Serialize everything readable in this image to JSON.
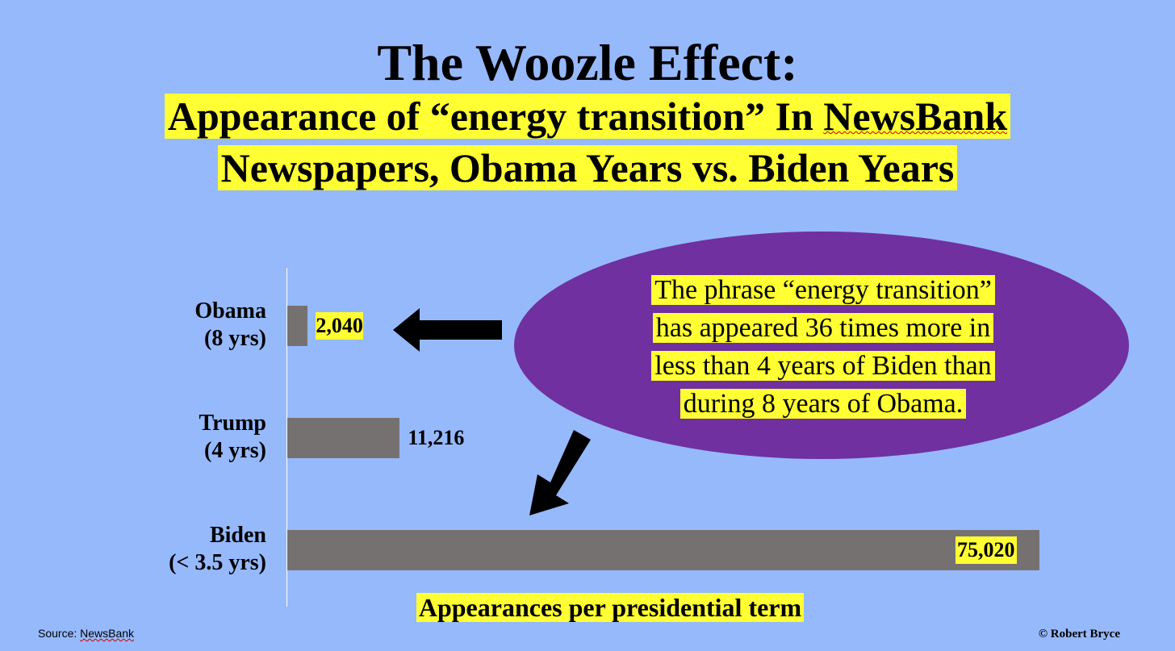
{
  "slide": {
    "title": "The Woozle Effect:",
    "subtitle_line1_pre": "Appearance of “energy transition” In ",
    "subtitle_line1_news": "NewsBank",
    "subtitle_line2": "Newspapers, Obama Years vs. Biden Years",
    "callout_lines": [
      "The phrase “energy transition”",
      "has appeared 36 times more in",
      "less than 4 years of Biden than",
      "during 8 years of Obama."
    ],
    "source_label": "Source: ",
    "source_name": "NewsBank",
    "credit": "© Robert Bryce"
  },
  "chart_data": {
    "type": "bar",
    "orientation": "horizontal",
    "categories": [
      [
        "Obama",
        "(8 yrs)"
      ],
      [
        "Trump",
        "(4 yrs)"
      ],
      [
        "Biden",
        "(< 3.5 yrs)"
      ]
    ],
    "values": [
      2040,
      11216,
      75020
    ],
    "value_labels": [
      "2,040",
      "11,216",
      "75,020"
    ],
    "xlabel": "Appearances per presidential term",
    "ylabel": "",
    "xlim": [
      0,
      75020
    ],
    "grid": false,
    "legend": "none"
  },
  "colors": {
    "background": "#96b9fc",
    "bar": "#767171",
    "highlight": "#ffff33",
    "ellipse": "#7030a0",
    "arrow": "#000000"
  },
  "icons": [
    "left-arrow-icon",
    "down-left-arrow-icon"
  ]
}
